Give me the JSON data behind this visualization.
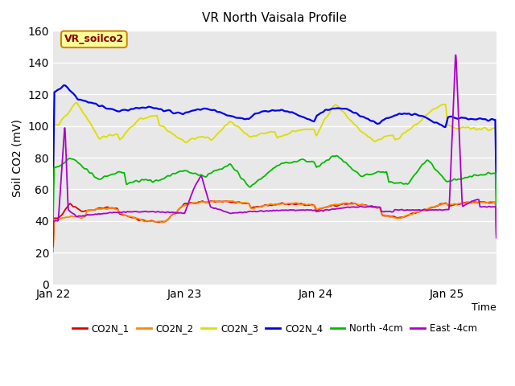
{
  "title": "VR North Vaisala Profile",
  "ylabel": "Soil CO2 (mV)",
  "xlabel": "Time",
  "annotation": "VR_soilco2",
  "ylim": [
    0,
    160
  ],
  "yticks": [
    0,
    20,
    40,
    60,
    80,
    100,
    120,
    140,
    160
  ],
  "xtick_labels": [
    "Jan 22",
    "Jan 23",
    "Jan 24",
    "Jan 25"
  ],
  "xtick_positions": [
    0,
    1,
    2,
    3
  ],
  "bg_color": "#E8E8E8",
  "series": {
    "CO2N_1": {
      "color": "#DD0000",
      "lw": 1.3
    },
    "CO2N_2": {
      "color": "#FF8800",
      "lw": 1.3
    },
    "CO2N_3": {
      "color": "#DDDD00",
      "lw": 1.3
    },
    "CO2N_4": {
      "color": "#0000EE",
      "lw": 1.6
    },
    "North -4cm": {
      "color": "#00BB00",
      "lw": 1.3
    },
    "East -4cm": {
      "color": "#AA00CC",
      "lw": 1.3
    }
  },
  "legend_colors": {
    "CO2N_1": "#DD0000",
    "CO2N_2": "#FF8800",
    "CO2N_3": "#DDDD00",
    "CO2N_4": "#0000EE",
    "North -4cm": "#00BB00",
    "East -4cm": "#AA00CC"
  }
}
